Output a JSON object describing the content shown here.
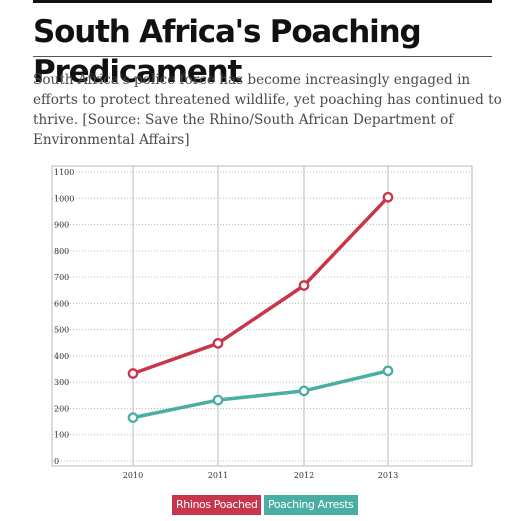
{
  "header": {
    "title": "South Africa's Poaching Predicament",
    "description": "South Africa's police force has become increasingly engaged in efforts to protect threatened wildlife, yet poaching has continued to thrive. [Source: Save the Rhino/South African Department of Environmental Affairs]"
  },
  "chart_data": {
    "type": "line",
    "x": [
      "2010",
      "2011",
      "2012",
      "2013"
    ],
    "ylim": [
      0,
      1100
    ],
    "yticks": [
      0,
      100,
      200,
      300,
      400,
      500,
      600,
      700,
      800,
      900,
      1000,
      1100
    ],
    "grid": {
      "vertical": true,
      "horizontal_dotted": true
    },
    "legend_position": "bottom-center",
    "series": [
      {
        "name": "Rhinos Poached",
        "color": "#c9364b",
        "values": [
          333,
          448,
          668,
          1004
        ]
      },
      {
        "name": "Poaching Arrests",
        "color": "#4aaea4",
        "values": [
          165,
          232,
          267,
          343
        ]
      }
    ]
  }
}
